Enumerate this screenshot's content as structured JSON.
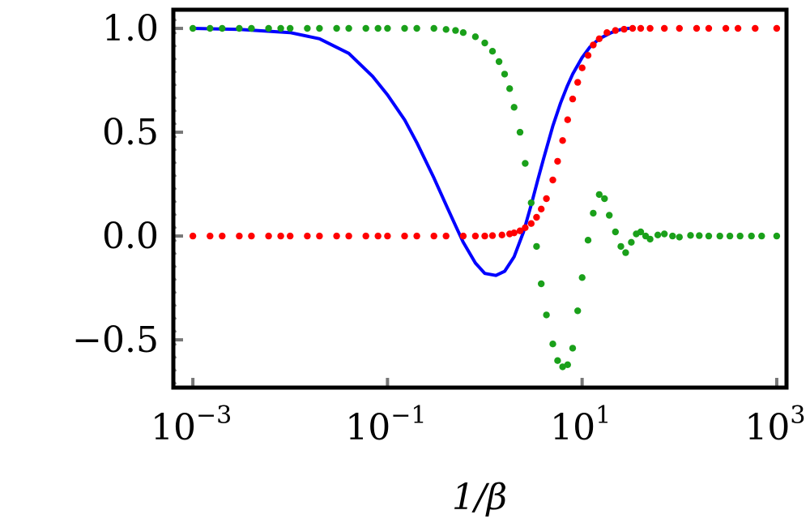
{
  "chart_data": {
    "type": "scatter",
    "title": "",
    "xlabel": "1/β",
    "ylabel": "",
    "x_scale": "log",
    "xlim": [
      0.00063,
      1260
    ],
    "ylim": [
      -0.73,
      1.09
    ],
    "grid": false,
    "legend": "none",
    "x_ticks": [
      {
        "value": 0.001,
        "base": "10",
        "exp": "−3"
      },
      {
        "value": 0.1,
        "base": "10",
        "exp": "−1"
      },
      {
        "value": 10,
        "base": "10",
        "exp": "1"
      },
      {
        "value": 1000,
        "base": "10",
        "exp": "3"
      }
    ],
    "y_ticks": [
      {
        "value": 1.0,
        "label": "1.0"
      },
      {
        "value": 0.5,
        "label": "0.5"
      },
      {
        "value": 0.0,
        "label": "0.0"
      },
      {
        "value": -0.5,
        "label": "−0.5"
      }
    ],
    "series": [
      {
        "style": "line",
        "color": "#0000ff",
        "x": [
          0.001,
          0.003,
          0.01,
          0.02,
          0.04,
          0.07,
          0.1,
          0.15,
          0.2,
          0.3,
          0.4,
          0.5,
          0.6,
          0.8,
          1.0,
          1.3,
          1.6,
          2.0,
          2.5,
          3.0,
          3.5,
          4.0,
          5.0,
          6.0,
          7.0,
          8.0,
          10.0,
          12.0,
          15.0,
          20.0,
          25.0,
          30.0
        ],
        "y": [
          1.0,
          0.995,
          0.98,
          0.95,
          0.88,
          0.77,
          0.68,
          0.56,
          0.45,
          0.28,
          0.15,
          0.05,
          -0.03,
          -0.13,
          -0.18,
          -0.19,
          -0.17,
          -0.1,
          0.02,
          0.15,
          0.27,
          0.37,
          0.53,
          0.64,
          0.72,
          0.78,
          0.86,
          0.91,
          0.95,
          0.98,
          0.995,
          1.0
        ]
      },
      {
        "style": "dots",
        "color": "#ff0000",
        "x": [
          0.001,
          0.0015,
          0.002,
          0.003,
          0.004,
          0.006,
          0.008,
          0.01,
          0.015,
          0.02,
          0.03,
          0.04,
          0.06,
          0.08,
          0.1,
          0.15,
          0.2,
          0.3,
          0.4,
          0.6,
          0.8,
          1.0,
          1.2,
          1.5,
          1.8,
          2.0,
          2.3,
          2.6,
          3.0,
          3.4,
          3.8,
          4.3,
          5.0,
          5.6,
          6.3,
          7.1,
          8.0,
          9.0,
          10.0,
          11.5,
          13.0,
          15.0,
          18.0,
          22.0,
          27.0,
          33.0,
          40.0,
          50.0,
          70.0,
          100.0,
          150.0,
          200.0,
          300.0,
          400.0,
          600.0,
          1000.0
        ],
        "y": [
          0.0,
          0.0,
          0.0,
          0.0,
          0.0,
          0.0,
          0.0,
          0.0,
          0.0,
          0.0,
          0.0,
          0.0,
          0.0,
          0.0,
          0.0,
          0.0,
          0.0,
          0.0,
          0.0,
          0.0,
          0.0,
          0.0,
          0.002,
          0.005,
          0.01,
          0.015,
          0.025,
          0.04,
          0.06,
          0.09,
          0.13,
          0.18,
          0.27,
          0.36,
          0.46,
          0.56,
          0.66,
          0.74,
          0.81,
          0.87,
          0.92,
          0.95,
          0.98,
          0.99,
          0.996,
          1.0,
          1.0,
          1.0,
          1.0,
          1.0,
          1.0,
          1.0,
          1.0,
          1.0,
          1.0,
          1.0
        ]
      },
      {
        "style": "dots",
        "color": "#1aa01a",
        "x": [
          0.001,
          0.0015,
          0.002,
          0.003,
          0.004,
          0.006,
          0.008,
          0.01,
          0.015,
          0.02,
          0.03,
          0.04,
          0.06,
          0.08,
          0.1,
          0.15,
          0.2,
          0.3,
          0.4,
          0.5,
          0.6,
          0.8,
          1.0,
          1.2,
          1.4,
          1.6,
          1.8,
          2.0,
          2.3,
          2.6,
          3.0,
          3.4,
          3.8,
          4.3,
          5.0,
          5.6,
          6.3,
          7.1,
          8.0,
          9.0,
          10.0,
          11.5,
          13.0,
          15.0,
          17.0,
          19.0,
          22.0,
          25.0,
          28.0,
          32.0,
          36.0,
          40.0,
          45.0,
          50.0,
          60.0,
          70.0,
          85.0,
          100.0,
          130.0,
          160.0,
          200.0,
          260.0,
          330.0,
          420.0,
          550.0,
          700.0,
          1000.0
        ],
        "y": [
          1.0,
          1.0,
          1.0,
          1.0,
          1.0,
          1.0,
          1.0,
          1.0,
          1.0,
          1.0,
          1.0,
          1.0,
          1.0,
          1.0,
          1.0,
          1.0,
          1.0,
          1.0,
          0.995,
          0.99,
          0.98,
          0.96,
          0.93,
          0.89,
          0.84,
          0.78,
          0.71,
          0.62,
          0.5,
          0.35,
          0.16,
          -0.05,
          -0.23,
          -0.38,
          -0.52,
          -0.6,
          -0.63,
          -0.62,
          -0.54,
          -0.36,
          -0.2,
          -0.02,
          0.11,
          0.2,
          0.18,
          0.1,
          0.02,
          -0.05,
          -0.08,
          -0.03,
          0.01,
          0.02,
          0.0,
          -0.015,
          0.005,
          0.01,
          0.0,
          -0.005,
          0.003,
          0.002,
          0.0,
          0.0,
          0.0,
          0.0,
          0.0,
          0.0,
          0.0
        ]
      }
    ]
  }
}
